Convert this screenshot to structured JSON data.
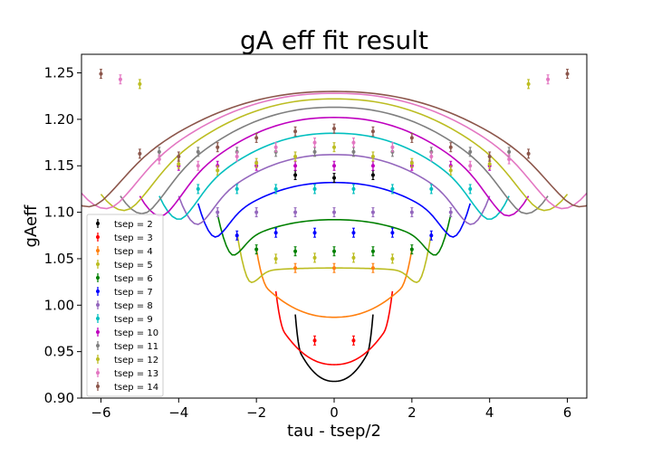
{
  "chart_data": {
    "type": "scatter",
    "title": "gA eff fit result",
    "xlabel": "tau - tsep/2",
    "ylabel": "gAeff",
    "xlim": [
      -6.5,
      6.5
    ],
    "ylim": [
      0.9,
      1.27
    ],
    "xticks": [
      "−6",
      "−4",
      "−2",
      "0",
      "2",
      "4",
      "6"
    ],
    "xtick_values": [
      -6,
      -4,
      -2,
      0,
      2,
      4,
      6
    ],
    "yticks": [
      "0.90",
      "0.95",
      "1.00",
      "1.05",
      "1.10",
      "1.15",
      "1.20",
      "1.25"
    ],
    "ytick_values": [
      0.9,
      0.95,
      1.0,
      1.05,
      1.1,
      1.15,
      1.2,
      1.25
    ],
    "grid": false,
    "legend_position": "lower-left",
    "series": [
      {
        "name": "tsep = 2",
        "tsep": 2,
        "color": "#000000",
        "points": [
          [
            -1,
            1.14
          ],
          [
            0,
            1.137
          ],
          [
            1,
            1.14
          ]
        ],
        "fit": {
          "center": 0.918,
          "edge": 0.96
        }
      },
      {
        "name": "tsep = 3",
        "tsep": 3,
        "color": "#ff0000",
        "points": [
          [
            -0.5,
            0.962
          ],
          [
            0.5,
            0.962
          ]
        ],
        "fit": {
          "center": 0.936,
          "edge": 0.985
        }
      },
      {
        "name": "tsep = 4",
        "tsep": 4,
        "color": "#ff7f0e",
        "points": [
          [
            -1,
            1.04
          ],
          [
            0,
            1.04
          ],
          [
            1,
            1.04
          ]
        ],
        "fit": {
          "center": 0.987,
          "edge": 1.03
        }
      },
      {
        "name": "tsep = 5",
        "tsep": 5,
        "color": "#bcbd22",
        "points": [
          [
            -1.5,
            1.05
          ],
          [
            -0.5,
            1.051
          ],
          [
            0.5,
            1.051
          ],
          [
            1.5,
            1.05
          ]
        ],
        "fit": {
          "center": 1.04,
          "edge": 1.035
        }
      },
      {
        "name": "tsep = 6",
        "tsep": 6,
        "color": "#008000",
        "points": [
          [
            -2,
            1.06
          ],
          [
            -1,
            1.058
          ],
          [
            0,
            1.058
          ],
          [
            1,
            1.058
          ],
          [
            2,
            1.06
          ]
        ],
        "fit": {
          "center": 1.092,
          "edge": 1.055
        }
      },
      {
        "name": "tsep = 7",
        "tsep": 7,
        "color": "#0000ff",
        "points": [
          [
            -2.5,
            1.075
          ],
          [
            -1.5,
            1.078
          ],
          [
            -0.5,
            1.078
          ],
          [
            0.5,
            1.078
          ],
          [
            1.5,
            1.078
          ],
          [
            2.5,
            1.075
          ]
        ],
        "fit": {
          "center": 1.132,
          "edge": 1.067
        }
      },
      {
        "name": "tsep = 8",
        "tsep": 8,
        "color": "#9467bd",
        "points": [
          [
            -3,
            1.1
          ],
          [
            -2,
            1.1
          ],
          [
            -1,
            1.1
          ],
          [
            0,
            1.1
          ],
          [
            1,
            1.1
          ],
          [
            2,
            1.1
          ],
          [
            3,
            1.1
          ]
        ],
        "fit": {
          "center": 1.162,
          "edge": 1.075
        }
      },
      {
        "name": "tsep = 9",
        "tsep": 9,
        "color": "#00bfbf",
        "points": [
          [
            -3.5,
            1.125
          ],
          [
            -2.5,
            1.125
          ],
          [
            -1.5,
            1.125
          ],
          [
            -0.5,
            1.125
          ],
          [
            0.5,
            1.125
          ],
          [
            1.5,
            1.125
          ],
          [
            2.5,
            1.125
          ],
          [
            3.5,
            1.125
          ]
        ],
        "fit": {
          "center": 1.185,
          "edge": 1.075
        }
      },
      {
        "name": "tsep = 10",
        "tsep": 10,
        "color": "#bf00bf",
        "points": [
          [
            -4,
            1.15
          ],
          [
            -3,
            1.15
          ],
          [
            -2,
            1.15
          ],
          [
            -1,
            1.15
          ],
          [
            0,
            1.15
          ],
          [
            1,
            1.15
          ],
          [
            2,
            1.15
          ],
          [
            3,
            1.15
          ],
          [
            4,
            1.15
          ]
        ],
        "fit": {
          "center": 1.202,
          "edge": 1.075
        }
      },
      {
        "name": "tsep = 11",
        "tsep": 11,
        "color": "#7f7f7f",
        "points": [
          [
            -4.5,
            1.165
          ],
          [
            -3.5,
            1.165
          ],
          [
            -2.5,
            1.165
          ],
          [
            -1.5,
            1.165
          ],
          [
            -0.5,
            1.165
          ],
          [
            0.5,
            1.165
          ],
          [
            1.5,
            1.165
          ],
          [
            2.5,
            1.165
          ],
          [
            3.5,
            1.165
          ],
          [
            4.5,
            1.165
          ]
        ],
        "fit": {
          "center": 1.213,
          "edge": 1.075
        }
      },
      {
        "name": "tsep = 12",
        "tsep": 12,
        "color": "#bcbd22",
        "points": [
          [
            -5,
            1.238
          ],
          [
            -4,
            1.152
          ],
          [
            -3,
            1.145
          ],
          [
            -2,
            1.153
          ],
          [
            -1,
            1.16
          ],
          [
            0,
            1.17
          ],
          [
            1,
            1.16
          ],
          [
            2,
            1.153
          ],
          [
            3,
            1.145
          ],
          [
            4,
            1.152
          ],
          [
            5,
            1.238
          ]
        ],
        "fit": {
          "center": 1.222,
          "edge": 1.077
        }
      },
      {
        "name": "tsep = 13",
        "tsep": 13,
        "color": "#e377c2",
        "points": [
          [
            -5.5,
            1.243
          ],
          [
            -4.5,
            1.157
          ],
          [
            -3.5,
            1.15
          ],
          [
            -2.5,
            1.16
          ],
          [
            -1.5,
            1.17
          ],
          [
            -0.5,
            1.175
          ],
          [
            0.5,
            1.175
          ],
          [
            1.5,
            1.17
          ],
          [
            2.5,
            1.16
          ],
          [
            3.5,
            1.15
          ],
          [
            4.5,
            1.157
          ],
          [
            5.5,
            1.243
          ]
        ],
        "fit": {
          "center": 1.228,
          "edge": 1.078
        }
      },
      {
        "name": "tsep = 14",
        "tsep": 14,
        "color": "#8c564b",
        "points": [
          [
            -6,
            1.249
          ],
          [
            -5,
            1.163
          ],
          [
            -4,
            1.16
          ],
          [
            -3,
            1.17
          ],
          [
            -2,
            1.18
          ],
          [
            -1,
            1.187
          ],
          [
            0,
            1.19
          ],
          [
            1,
            1.187
          ],
          [
            2,
            1.18
          ],
          [
            3,
            1.17
          ],
          [
            4,
            1.16
          ],
          [
            5,
            1.163
          ],
          [
            6,
            1.249
          ]
        ],
        "fit": {
          "center": 1.23,
          "edge": 1.08
        }
      }
    ]
  }
}
